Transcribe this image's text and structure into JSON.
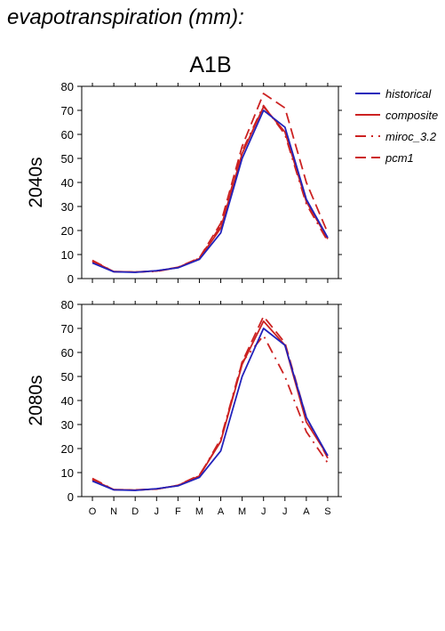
{
  "page_title": "evapotranspiration (mm):",
  "scenario": "A1B",
  "legend": [
    {
      "label": "historical",
      "color": "#2222bb",
      "dash": "solid"
    },
    {
      "label": "composite",
      "color": "#cc2222",
      "dash": "solid"
    },
    {
      "label": "miroc_3.2",
      "color": "#cc2222",
      "dash": "dashdot"
    },
    {
      "label": "pcm1",
      "color": "#cc2222",
      "dash": "dashed"
    }
  ],
  "chart_data": [
    {
      "type": "line",
      "row_label": "2040s",
      "categories": [
        "O",
        "N",
        "D",
        "J",
        "F",
        "M",
        "A",
        "M",
        "J",
        "J",
        "A",
        "S"
      ],
      "ylim": [
        0,
        80
      ],
      "yticks": [
        0,
        10,
        20,
        30,
        40,
        50,
        60,
        70,
        80
      ],
      "series": [
        {
          "name": "historical",
          "values": [
            6.5,
            2.8,
            2.6,
            3.3,
            4.5,
            8.0,
            19.0,
            50.0,
            70.0,
            63.0,
            33.0,
            17.0
          ]
        },
        {
          "name": "composite",
          "values": [
            7.3,
            2.9,
            2.7,
            3.2,
            4.6,
            8.3,
            21.0,
            52.0,
            71.5,
            61.0,
            32.0,
            16.5
          ]
        },
        {
          "name": "miroc_3.2",
          "values": [
            7.6,
            2.9,
            2.7,
            3.0,
            4.6,
            8.5,
            22.0,
            53.0,
            72.0,
            60.0,
            31.0,
            15.5
          ]
        },
        {
          "name": "pcm1",
          "values": [
            7.1,
            2.9,
            2.7,
            3.1,
            4.7,
            8.6,
            23.0,
            55.0,
            77.0,
            71.0,
            40.0,
            19.0
          ]
        }
      ]
    },
    {
      "type": "line",
      "row_label": "2080s",
      "categories": [
        "O",
        "N",
        "D",
        "J",
        "F",
        "M",
        "A",
        "M",
        "J",
        "J",
        "A",
        "S"
      ],
      "ylim": [
        0,
        80
      ],
      "yticks": [
        0,
        10,
        20,
        30,
        40,
        50,
        60,
        70,
        80
      ],
      "series": [
        {
          "name": "historical",
          "values": [
            6.5,
            2.8,
            2.6,
            3.3,
            4.5,
            8.0,
            19.0,
            50.0,
            70.0,
            63.0,
            33.0,
            17.0
          ]
        },
        {
          "name": "composite",
          "values": [
            7.0,
            2.9,
            2.7,
            3.2,
            4.6,
            8.6,
            23.0,
            55.0,
            73.0,
            63.0,
            31.0,
            17.0
          ]
        },
        {
          "name": "miroc_3.2",
          "values": [
            7.6,
            2.9,
            2.8,
            3.1,
            4.7,
            8.6,
            24.0,
            56.0,
            67.0,
            50.0,
            27.0,
            14.0
          ]
        },
        {
          "name": "pcm1",
          "values": [
            7.2,
            2.9,
            2.7,
            3.1,
            4.7,
            9.0,
            23.0,
            56.0,
            75.0,
            64.0,
            33.0,
            16.0
          ]
        }
      ]
    }
  ]
}
